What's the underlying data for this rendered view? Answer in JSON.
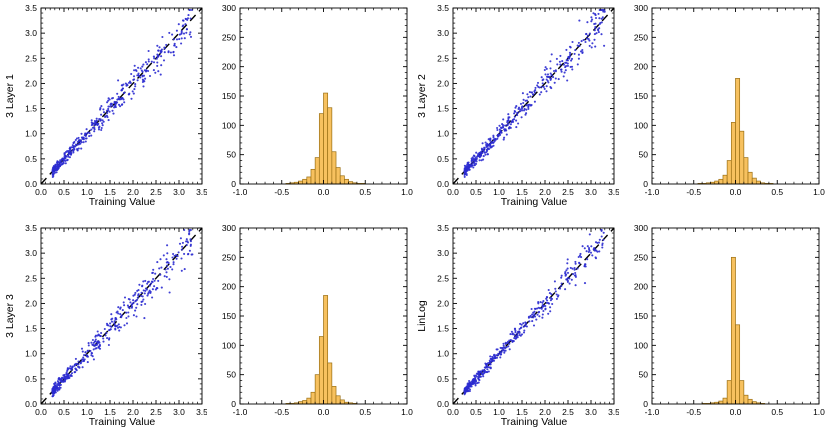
{
  "chart_data": {
    "type": "scatter",
    "layout": "2x2 grid; each quadrant = scatter plot (prediction vs training value with dashed y=x line) + histogram of residuals",
    "colors": {
      "point": "#2b2bd0",
      "diagonal": "#000000",
      "bar_fill": "#f7c15f",
      "bar_edge": "#9a6f14",
      "frame": "#000000",
      "background": "#ffffff"
    },
    "scatter_axes": {
      "xlim": [
        0,
        3.5
      ],
      "ylim": [
        0,
        3.5
      ],
      "xticks": [
        0,
        0.5,
        1,
        1.5,
        2,
        2.5,
        3,
        3.5
      ],
      "yticks": [
        0,
        0.5,
        1,
        1.5,
        2,
        2.5,
        3,
        3.5
      ],
      "x_minor": 0.1,
      "y_minor": 0.1,
      "tick_decimals": 1,
      "diagonal_line": {
        "from": [
          0,
          0
        ],
        "to": [
          3.5,
          3.5
        ],
        "dashed": true
      }
    },
    "hist_axes": {
      "xlim": [
        -1,
        1
      ],
      "ylim": [
        0,
        300
      ],
      "xticks": [
        -1,
        -0.5,
        0,
        0.5,
        1
      ],
      "yticks": [
        0,
        50,
        100,
        150,
        200,
        250,
        300
      ],
      "x_minor": 0.1,
      "y_minor": 10,
      "xtick_decimals": 1,
      "ytick_decimals": 0,
      "bin_start": -0.5,
      "bin_width": 0.05
    },
    "panels": [
      {
        "ylabel": "3 Layer 1",
        "xlabel": "Training Value",
        "scatter_gen": {
          "seed": 101,
          "n": 420,
          "x_min": 0.25,
          "x_max": 3.3,
          "x_skew": 1.6,
          "noise_base": 0.035,
          "noise_slope": 0.05
        },
        "hist_counts": [
          0,
          1,
          2,
          3,
          5,
          8,
          12,
          25,
          45,
          120,
          155,
          130,
          55,
          28,
          14,
          8,
          4,
          2,
          1,
          1
        ]
      },
      {
        "ylabel": "3 Layer 2",
        "xlabel": "Training Value",
        "scatter_gen": {
          "seed": 102,
          "n": 420,
          "x_min": 0.25,
          "x_max": 3.3,
          "x_skew": 1.6,
          "noise_base": 0.035,
          "noise_slope": 0.055
        },
        "hist_counts": [
          0,
          1,
          1,
          2,
          3,
          5,
          8,
          15,
          40,
          105,
          180,
          90,
          45,
          20,
          10,
          5,
          2,
          1,
          1,
          0
        ]
      },
      {
        "ylabel": "3 Layer 3",
        "xlabel": "Training Value",
        "scatter_gen": {
          "seed": 103,
          "n": 420,
          "x_min": 0.25,
          "x_max": 3.3,
          "x_skew": 1.6,
          "noise_base": 0.035,
          "noise_slope": 0.055
        },
        "hist_counts": [
          0,
          1,
          1,
          2,
          4,
          6,
          10,
          20,
          50,
          115,
          185,
          70,
          30,
          14,
          7,
          3,
          2,
          1,
          0,
          0
        ]
      },
      {
        "ylabel": "LinLog",
        "xlabel": "Training Value",
        "scatter_gen": {
          "seed": 104,
          "n": 420,
          "x_min": 0.25,
          "x_max": 3.3,
          "x_skew": 1.6,
          "noise_base": 0.02,
          "noise_slope": 0.05
        },
        "hist_counts": [
          0,
          0,
          1,
          1,
          2,
          3,
          5,
          10,
          40,
          250,
          135,
          40,
          15,
          8,
          4,
          2,
          1,
          0,
          0,
          0
        ]
      }
    ]
  }
}
